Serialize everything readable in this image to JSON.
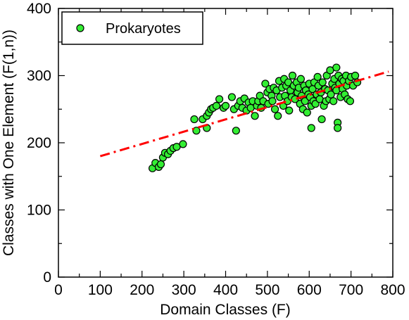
{
  "chart_data": {
    "type": "scatter",
    "xlabel": "Domain Classes (F)",
    "ylabel": "Classes with One Element (F(1,n))",
    "xlim": [
      0,
      800
    ],
    "ylim": [
      0,
      400
    ],
    "x_ticks": [
      "0",
      "100",
      "200",
      "300",
      "400",
      "500",
      "600",
      "700",
      "800"
    ],
    "y_ticks": [
      "0",
      "100",
      "200",
      "300",
      "400"
    ],
    "grid": false,
    "legend_position": "top-left",
    "colors": {
      "points": "#33ee33",
      "point_edge": "#000000",
      "trend": "#ff0000"
    },
    "series": [
      {
        "name": "Prokaryotes",
        "points": [
          [
            225,
            162
          ],
          [
            232,
            170
          ],
          [
            240,
            164
          ],
          [
            245,
            168
          ],
          [
            250,
            178
          ],
          [
            255,
            185
          ],
          [
            262,
            183
          ],
          [
            268,
            188
          ],
          [
            275,
            192
          ],
          [
            283,
            194
          ],
          [
            298,
            198
          ],
          [
            325,
            235
          ],
          [
            330,
            218
          ],
          [
            345,
            235
          ],
          [
            355,
            222
          ],
          [
            355,
            240
          ],
          [
            360,
            245
          ],
          [
            365,
            250
          ],
          [
            370,
            252
          ],
          [
            378,
            255
          ],
          [
            385,
            265
          ],
          [
            395,
            252
          ],
          [
            400,
            255
          ],
          [
            415,
            268
          ],
          [
            420,
            250
          ],
          [
            425,
            218
          ],
          [
            430,
            255
          ],
          [
            435,
            262
          ],
          [
            440,
            252
          ],
          [
            445,
            266
          ],
          [
            450,
            248
          ],
          [
            455,
            260
          ],
          [
            460,
            252
          ],
          [
            465,
            262
          ],
          [
            470,
            240
          ],
          [
            475,
            255
          ],
          [
            478,
            262
          ],
          [
            482,
            270
          ],
          [
            485,
            252
          ],
          [
            490,
            262
          ],
          [
            495,
            288
          ],
          [
            500,
            275
          ],
          [
            502,
            258
          ],
          [
            505,
            280
          ],
          [
            510,
            270
          ],
          [
            512,
            262
          ],
          [
            515,
            282
          ],
          [
            518,
            250
          ],
          [
            522,
            278
          ],
          [
            525,
            240
          ],
          [
            528,
            292
          ],
          [
            530,
            268
          ],
          [
            535,
            282
          ],
          [
            538,
            255
          ],
          [
            540,
            295
          ],
          [
            542,
            270
          ],
          [
            545,
            285
          ],
          [
            548,
            262
          ],
          [
            550,
            290
          ],
          [
            552,
            248
          ],
          [
            555,
            278
          ],
          [
            558,
            268
          ],
          [
            560,
            300
          ],
          [
            563,
            285
          ],
          [
            566,
            265
          ],
          [
            570,
            290
          ],
          [
            572,
            275
          ],
          [
            575,
            282
          ],
          [
            578,
            258
          ],
          [
            580,
            295
          ],
          [
            582,
            270
          ],
          [
            585,
            250
          ],
          [
            588,
            285
          ],
          [
            590,
            262
          ],
          [
            592,
            278
          ],
          [
            595,
            245
          ],
          [
            598,
            272
          ],
          [
            600,
            288
          ],
          [
            602,
            268
          ],
          [
            605,
            222
          ],
          [
            605,
            255
          ],
          [
            608,
            280
          ],
          [
            610,
            262
          ],
          [
            612,
            290
          ],
          [
            615,
            258
          ],
          [
            618,
            272
          ],
          [
            620,
            298
          ],
          [
            622,
            285
          ],
          [
            625,
            265
          ],
          [
            628,
            275
          ],
          [
            630,
            235
          ],
          [
            632,
            290
          ],
          [
            635,
            255
          ],
          [
            638,
            280
          ],
          [
            640,
            262
          ],
          [
            642,
            300
          ],
          [
            645,
            278
          ],
          [
            648,
            265
          ],
          [
            650,
            308
          ],
          [
            652,
            272
          ],
          [
            655,
            288
          ],
          [
            658,
            262
          ],
          [
            660,
            295
          ],
          [
            662,
            282
          ],
          [
            665,
            312
          ],
          [
            665,
            278
          ],
          [
            668,
            230
          ],
          [
            668,
            222
          ],
          [
            670,
            300
          ],
          [
            672,
            288
          ],
          [
            675,
            268
          ],
          [
            678,
            295
          ],
          [
            680,
            280
          ],
          [
            682,
            292
          ],
          [
            685,
            272
          ],
          [
            688,
            300
          ],
          [
            690,
            285
          ],
          [
            692,
            265
          ],
          [
            695,
            292
          ],
          [
            698,
            262
          ],
          [
            700,
            298
          ],
          [
            705,
            285
          ],
          [
            710,
            300
          ],
          [
            715,
            290
          ]
        ]
      }
    ],
    "trendline": {
      "style": "dash-dot",
      "from": [
        100,
        180
      ],
      "to": [
        790,
        306
      ]
    }
  }
}
